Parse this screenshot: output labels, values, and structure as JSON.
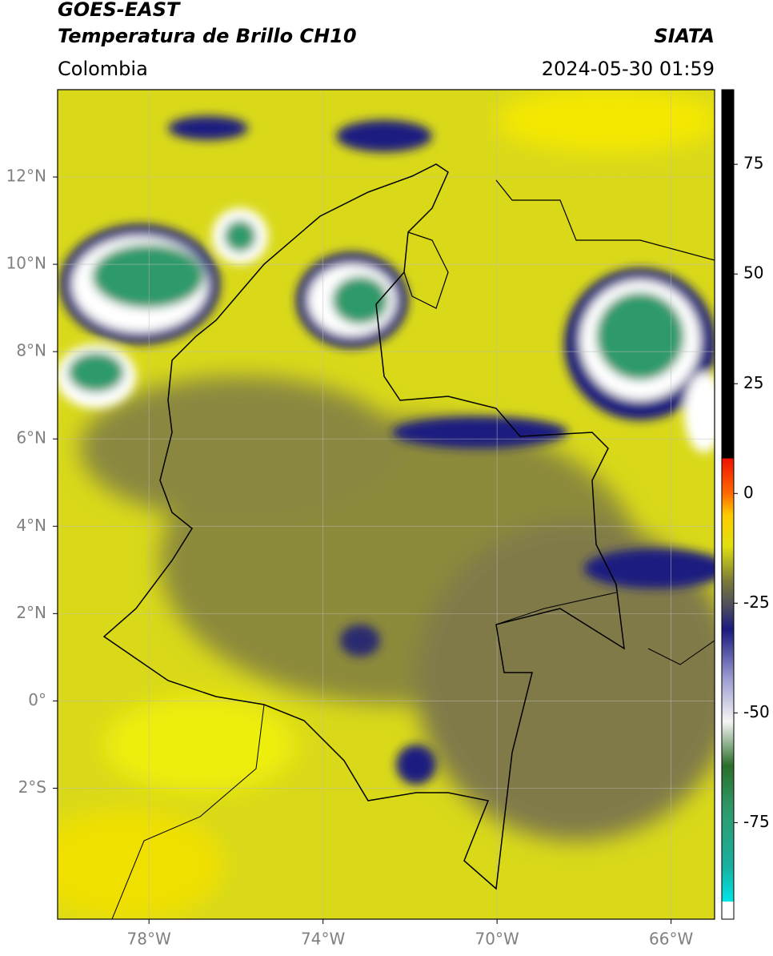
{
  "header": {
    "satellite": "GOES-EAST",
    "product": "Temperatura de Brillo CH10",
    "region": "Colombia",
    "source": "SIATA",
    "datetime": "2024-05-30 01:59"
  },
  "map": {
    "lon_range": [
      -80.1,
      -65
    ],
    "lat_range": [
      -5,
      14
    ],
    "grid": true,
    "lon_ticks": [
      {
        "value": -78,
        "label": "78°W"
      },
      {
        "value": -74,
        "label": "74°W"
      },
      {
        "value": -70,
        "label": "70°W"
      },
      {
        "value": -66,
        "label": "66°W"
      }
    ],
    "lat_ticks": [
      {
        "value": 12,
        "label": "12°N"
      },
      {
        "value": 10,
        "label": "10°N"
      },
      {
        "value": 8,
        "label": "8°N"
      },
      {
        "value": 6,
        "label": "6°N"
      },
      {
        "value": 4,
        "label": "4°N"
      },
      {
        "value": 2,
        "label": "2°N"
      },
      {
        "value": 0,
        "label": "0°"
      },
      {
        "value": -2,
        "label": "2°S"
      }
    ]
  },
  "colorbar": {
    "range": [
      -97,
      92
    ],
    "ticks": [
      75,
      50,
      25,
      0,
      -25,
      -50,
      -75
    ],
    "colormap": [
      {
        "value": -97,
        "color": "#ffffff"
      },
      {
        "value": -93,
        "color": "#ffffff"
      },
      {
        "value": -93,
        "color": "#00e5e5"
      },
      {
        "value": -85,
        "color": "#1ab0a0"
      },
      {
        "value": -72,
        "color": "#2e9a6a"
      },
      {
        "value": -62,
        "color": "#2b6e2a"
      },
      {
        "value": -52,
        "color": "#f5f5f5"
      },
      {
        "value": -42,
        "color": "#9a9acf"
      },
      {
        "value": -31,
        "color": "#1a1a80"
      },
      {
        "value": -26,
        "color": "#4a4a60"
      },
      {
        "value": -20,
        "color": "#7a7a3a"
      },
      {
        "value": -12,
        "color": "#e0e010"
      },
      {
        "value": -5,
        "color": "#ffcc00"
      },
      {
        "value": 0,
        "color": "#ff6a00"
      },
      {
        "value": 8,
        "color": "#ee1100"
      },
      {
        "value": 8,
        "color": "#000000"
      },
      {
        "value": 92,
        "color": "#000000"
      }
    ]
  }
}
